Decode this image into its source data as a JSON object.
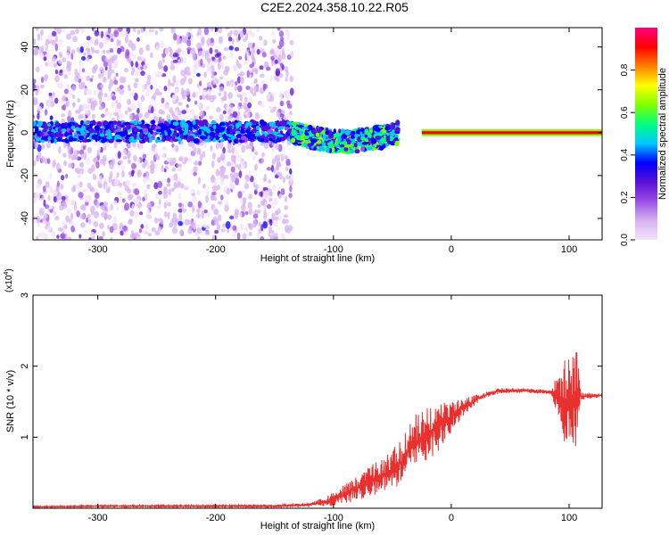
{
  "title": "C2E2.2024.358.10.22.R05",
  "chart_data": [
    {
      "type": "heatmap",
      "xlabel": "Height of straight line (km)",
      "ylabel": "Frequency (Hz)",
      "xlim": [
        -355,
        128
      ],
      "ylim": [
        -50,
        49
      ],
      "xticks": [
        -300,
        -200,
        -100,
        0,
        100
      ],
      "yticks": [
        -40,
        -20,
        0,
        20,
        40
      ],
      "colorbar": {
        "label": "Normalized spectral amplitude",
        "range": [
          0,
          1
        ],
        "ticks": [
          "0.0",
          "0.2",
          "0.4",
          "0.6",
          "0.8"
        ],
        "tick_values": [
          0.0,
          0.2,
          0.4,
          0.6,
          0.8
        ],
        "colors": [
          "#f2e2fa",
          "#d7b3f0",
          "#9b4fe6",
          "#5a10d8",
          "#0000ff",
          "#00c8ff",
          "#00ff80",
          "#80ff00",
          "#ffff00",
          "#ff8000",
          "#ff0000",
          "#ff0080"
        ]
      },
      "bands": [
        {
          "name": "noise_region",
          "x": [
            -355,
            -135
          ],
          "y": [
            -50,
            49
          ],
          "level": 0.15
        },
        {
          "name": "central_band",
          "x": [
            -355,
            -135
          ],
          "y": [
            -4,
            5
          ],
          "level": 0.35
        },
        {
          "name": "wave_band",
          "x": [
            -135,
            -45
          ],
          "y": [
            -10,
            6
          ],
          "level": 0.45
        },
        {
          "name": "narrow_line",
          "x": [
            -25,
            128
          ],
          "y": [
            -1,
            1
          ],
          "level": 0.95
        }
      ]
    },
    {
      "type": "line",
      "xlabel": "Height of straight line (km)",
      "ylabel": "SNR (10 * v/v)",
      "y_multiplier": "(x10",
      "y_multiplier_exp": "4",
      "y_multiplier_close": ")",
      "xlim": [
        -355,
        128
      ],
      "ylim": [
        0,
        3
      ],
      "xticks": [
        -300,
        -200,
        -100,
        0,
        100
      ],
      "yticks": [
        1,
        2,
        3
      ],
      "color": "#e8302f",
      "points": [
        [
          -355,
          0.02
        ],
        [
          -300,
          0.03
        ],
        [
          -250,
          0.03
        ],
        [
          -200,
          0.03
        ],
        [
          -150,
          0.03
        ],
        [
          -120,
          0.05
        ],
        [
          -100,
          0.12
        ],
        [
          -90,
          0.2
        ],
        [
          -80,
          0.28
        ],
        [
          -70,
          0.38
        ],
        [
          -60,
          0.45
        ],
        [
          -50,
          0.55
        ],
        [
          -40,
          0.7
        ],
        [
          -30,
          0.95
        ],
        [
          -20,
          1.05
        ],
        [
          -10,
          1.15
        ],
        [
          0,
          1.3
        ],
        [
          10,
          1.42
        ],
        [
          20,
          1.52
        ],
        [
          30,
          1.6
        ],
        [
          40,
          1.65
        ],
        [
          50,
          1.66
        ],
        [
          60,
          1.66
        ],
        [
          70,
          1.65
        ],
        [
          80,
          1.64
        ],
        [
          90,
          1.62
        ],
        [
          95,
          1.5
        ],
        [
          100,
          1.55
        ],
        [
          105,
          1.6
        ],
        [
          110,
          1.58
        ],
        [
          120,
          1.58
        ],
        [
          128,
          1.59
        ]
      ],
      "noise_amplitude": [
        [
          -355,
          0.01
        ],
        [
          -120,
          0.02
        ],
        [
          -100,
          0.1
        ],
        [
          -70,
          0.22
        ],
        [
          -50,
          0.28
        ],
        [
          -30,
          0.38
        ],
        [
          -10,
          0.35
        ],
        [
          10,
          0.12
        ],
        [
          30,
          0.04
        ],
        [
          85,
          0.03
        ],
        [
          90,
          0.3
        ],
        [
          100,
          0.75
        ],
        [
          105,
          0.9
        ],
        [
          110,
          0.06
        ],
        [
          128,
          0.02
        ]
      ]
    }
  ]
}
